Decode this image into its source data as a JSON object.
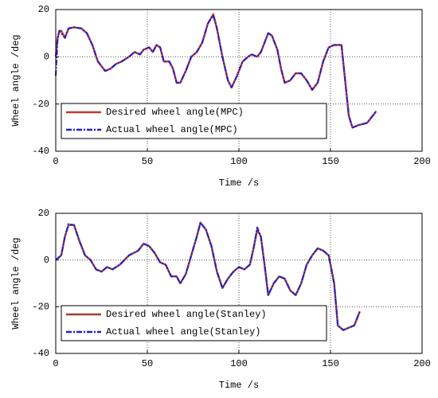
{
  "chart_data": [
    {
      "type": "line",
      "xlabel": "Time /s",
      "ylabel": "Wheel angle /deg",
      "xlim": [
        0,
        200
      ],
      "ylim": [
        -40,
        20
      ],
      "xticks": [
        0,
        50,
        100,
        150,
        200
      ],
      "yticks": [
        -40,
        -20,
        0,
        20
      ],
      "grid": true,
      "legend": "lower left",
      "x": [
        0,
        1,
        2,
        3,
        5,
        7,
        10,
        14,
        17,
        20,
        23,
        27,
        30,
        33,
        36,
        40,
        43,
        46,
        48,
        51,
        53,
        55,
        57,
        59,
        62,
        64,
        66,
        68,
        71,
        74,
        77,
        80,
        83,
        86,
        88,
        91,
        94,
        96,
        99,
        102,
        105,
        107,
        110,
        112,
        114,
        116,
        118,
        121,
        123,
        125,
        128,
        131,
        134,
        137,
        140,
        143,
        146,
        149,
        152,
        156,
        158,
        160,
        162,
        165,
        170,
        175
      ],
      "series": [
        {
          "name": "Desired wheel angle(MPC)",
          "color": "#c0392b",
          "linestyle": "solid",
          "values": [
            0,
            8,
            11,
            11,
            8,
            12,
            12.5,
            12,
            10,
            5,
            -2,
            -6,
            -5,
            -3,
            -2,
            0,
            2,
            1,
            3,
            4,
            2,
            5,
            4,
            -2,
            -2,
            -5,
            -11,
            -11,
            -6,
            0,
            2,
            6,
            14,
            18,
            12,
            0,
            -10,
            -13,
            -8,
            -2,
            0,
            1,
            0,
            2,
            6,
            10,
            9,
            3,
            -5,
            -11,
            -10,
            -7,
            -7,
            -10,
            -14,
            -11,
            -2,
            4,
            5,
            5,
            -10,
            -25,
            -30,
            -29,
            -28,
            -23
          ]
        },
        {
          "name": "Actual wheel angle(MPC)",
          "color": "#2020d0",
          "linestyle": "dash-dot",
          "values": [
            -8,
            7,
            11,
            10,
            8,
            12,
            12.5,
            12,
            10,
            5,
            -2,
            -6,
            -5,
            -3,
            -2,
            0,
            2,
            1,
            3,
            4,
            2,
            5,
            4,
            -2,
            -2,
            -5,
            -11,
            -11,
            -6,
            0,
            2,
            6,
            14,
            17.5,
            12,
            0,
            -10,
            -13,
            -8,
            -2,
            0,
            1,
            0,
            2,
            6,
            10,
            9,
            3,
            -5,
            -11,
            -10,
            -7,
            -7,
            -10,
            -14,
            -11,
            -2,
            4,
            5,
            5,
            -10,
            -25,
            -30,
            -29,
            -28,
            -23
          ]
        }
      ]
    },
    {
      "type": "line",
      "xlabel": "Time /s",
      "ylabel": "Wheel angle /deg",
      "xlim": [
        0,
        200
      ],
      "ylim": [
        -40,
        20
      ],
      "xticks": [
        0,
        50,
        100,
        150,
        200
      ],
      "yticks": [
        -40,
        -20,
        0,
        20
      ],
      "grid": true,
      "legend": "lower left",
      "x": [
        0,
        3,
        5,
        7,
        10,
        13,
        16,
        19,
        22,
        25,
        28,
        31,
        35,
        40,
        45,
        48,
        51,
        54,
        57,
        60,
        63,
        66,
        68,
        71,
        74,
        77,
        79,
        82,
        85,
        88,
        91,
        94,
        97,
        100,
        103,
        106,
        108,
        110,
        112,
        114,
        116,
        119,
        122,
        125,
        128,
        131,
        134,
        137,
        140,
        143,
        146,
        149,
        152,
        154,
        157,
        160,
        163,
        166
      ],
      "series": [
        {
          "name": "Desired wheel angle(Stanley)",
          "color": "#a0402a",
          "linestyle": "solid",
          "values": [
            0,
            2,
            10,
            15,
            15,
            8,
            2,
            0,
            -4,
            -5,
            -3,
            -4,
            -2,
            2,
            4,
            7,
            6,
            3,
            -1,
            -2,
            -7,
            -7,
            -10,
            -6,
            2,
            10,
            16,
            13,
            6,
            -5,
            -12,
            -8,
            -5,
            -3,
            -4,
            -2,
            5,
            13,
            10,
            -2,
            -15,
            -10,
            -7,
            -8,
            -13,
            -15,
            -10,
            -2,
            2,
            5,
            4,
            2,
            -10,
            -28,
            -30,
            -29,
            -28,
            -22
          ]
        },
        {
          "name": "Actual wheel angle(Stanley)",
          "color": "#2020d0",
          "linestyle": "dash-dot",
          "values": [
            0,
            2,
            10,
            15.5,
            15,
            8,
            2,
            0,
            -4,
            -5,
            -3,
            -4,
            -2,
            2,
            4,
            7,
            6,
            3,
            -1,
            -2,
            -7,
            -7,
            -10,
            -6,
            2,
            10,
            16,
            13,
            6,
            -5,
            -12,
            -8,
            -5,
            -3,
            -4,
            -2,
            5,
            14,
            10,
            -2,
            -15,
            -10,
            -7,
            -8,
            -13,
            -15,
            -10,
            -2,
            2,
            5,
            4,
            2,
            -10,
            -28,
            -30,
            -29,
            -28,
            -22
          ]
        }
      ]
    }
  ]
}
